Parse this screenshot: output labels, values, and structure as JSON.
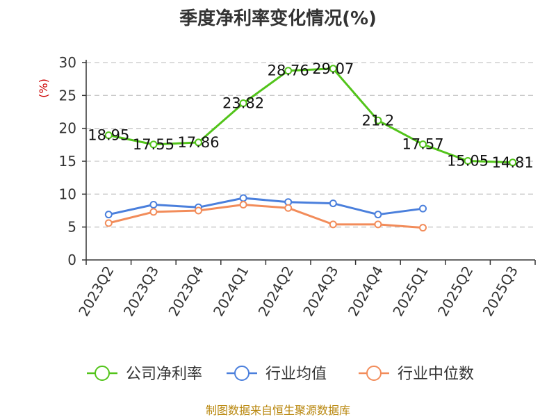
{
  "chart_data": {
    "type": "line",
    "title": "季度净利率变化情况(%)",
    "ylabel": "(%)",
    "xlabel": "",
    "categories": [
      "2023Q2",
      "2023Q3",
      "2023Q4",
      "2024Q1",
      "2024Q2",
      "2024Q3",
      "2024Q4",
      "2025Q1",
      "2025Q2",
      "2025Q3"
    ],
    "yticks": [
      0,
      5,
      10,
      15,
      20,
      25,
      30
    ],
    "ylim": [
      0,
      30
    ],
    "grid": true,
    "legend_position": "bottom",
    "series": [
      {
        "name": "公司净利率",
        "color": "#52c41a",
        "values": [
          18.95,
          17.55,
          17.86,
          23.82,
          28.76,
          29.07,
          21.2,
          17.57,
          15.05,
          14.81
        ],
        "labels": [
          "18.95",
          "17.55",
          "17.86",
          "23.82",
          "28.76",
          "29.07",
          "21.2",
          "17.57",
          "15.05",
          "14.81"
        ]
      },
      {
        "name": "行业均值",
        "color": "#4a7fdc",
        "values": [
          6.9,
          8.4,
          8.0,
          9.4,
          8.8,
          8.6,
          6.9,
          7.8,
          null,
          null
        ]
      },
      {
        "name": "行业中位数",
        "color": "#f28c5a",
        "values": [
          5.6,
          7.3,
          7.5,
          8.4,
          7.9,
          5.4,
          5.4,
          4.9,
          null,
          null
        ]
      }
    ],
    "source": "制图数据来自恒生聚源数据库"
  }
}
